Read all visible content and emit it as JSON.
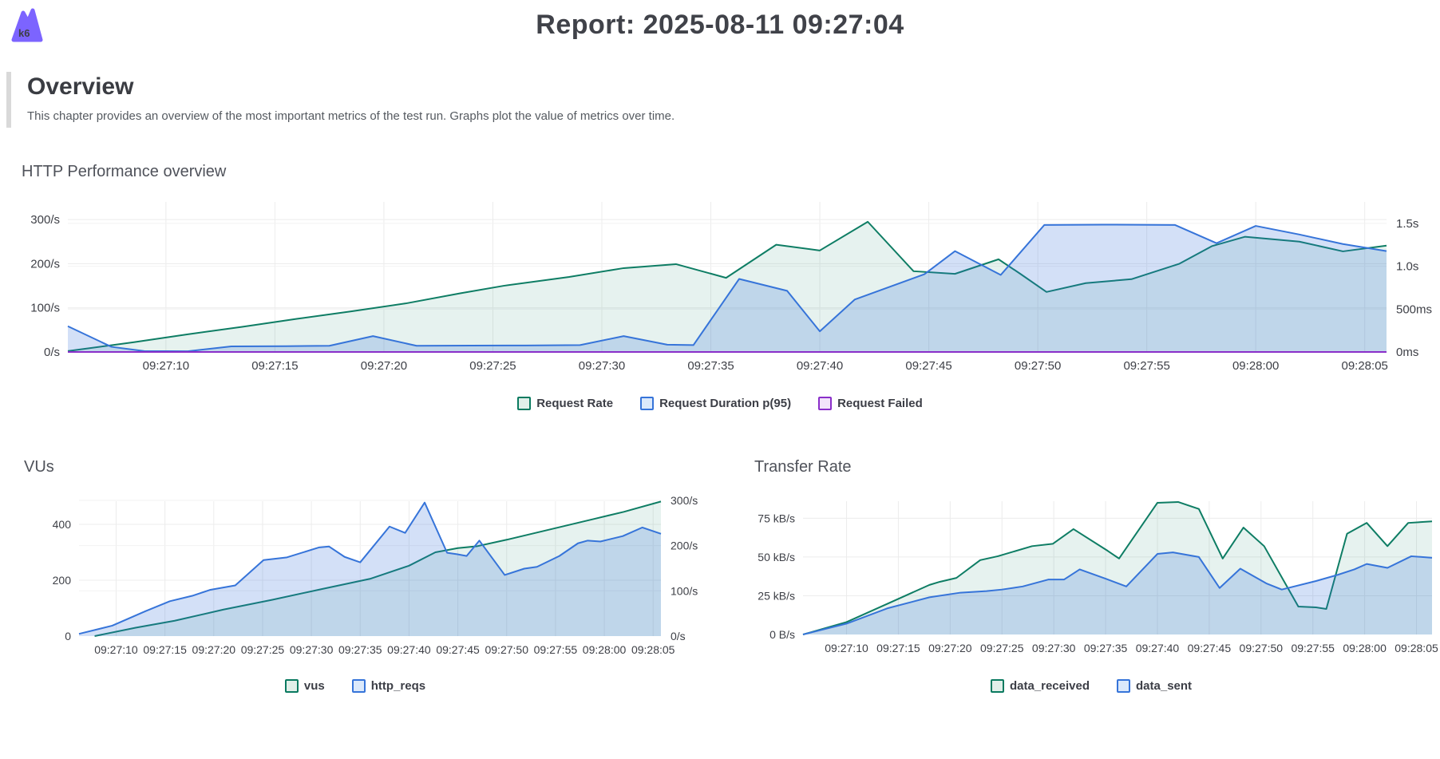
{
  "header": {
    "logo_text": "k6",
    "title": "Report: 2025-08-11 09:27:04"
  },
  "overview": {
    "heading": "Overview",
    "description": "This chapter provides an overview of the most important metrics of the test run. Graphs plot the value of metrics over time."
  },
  "colors": {
    "brand_purple": "#7c64ff",
    "series_green": "#0e7d64",
    "series_blue": "#3674d9",
    "series_purple": "#8a2fc9",
    "grid": "#ececec",
    "text": "#3d3f46"
  },
  "chart_data": [
    {
      "type": "area",
      "title": "HTTP Performance overview",
      "t_range": [
        5.5,
        66
      ],
      "x_ticks": [
        {
          "t": 10,
          "label": "09:27:10"
        },
        {
          "t": 15,
          "label": "09:27:15"
        },
        {
          "t": 20,
          "label": "09:27:20"
        },
        {
          "t": 25,
          "label": "09:27:25"
        },
        {
          "t": 30,
          "label": "09:27:30"
        },
        {
          "t": 35,
          "label": "09:27:35"
        },
        {
          "t": 40,
          "label": "09:27:40"
        },
        {
          "t": 45,
          "label": "09:27:45"
        },
        {
          "t": 50,
          "label": "09:27:50"
        },
        {
          "t": 55,
          "label": "09:27:55"
        },
        {
          "t": 60,
          "label": "09:28:00"
        },
        {
          "t": 65,
          "label": "09:28:05"
        }
      ],
      "axes": {
        "left": {
          "max": 340,
          "ticks": [
            {
              "v": 0,
              "label": "0/s"
            },
            {
              "v": 100,
              "label": "100/s"
            },
            {
              "v": 200,
              "label": "200/s"
            },
            {
              "v": 300,
              "label": "300/s"
            }
          ]
        },
        "right": {
          "max": 1750,
          "ticks": [
            {
              "v": 0,
              "label": "0ms"
            },
            {
              "v": 500,
              "label": "500ms"
            },
            {
              "v": 1000,
              "label": "1.0s"
            },
            {
              "v": 1500,
              "label": "1.5s"
            }
          ]
        }
      },
      "series": [
        {
          "name": "Request Rate",
          "axis": "left",
          "color": "#0e7d64",
          "fill_opacity": 0.1,
          "points": [
            [
              5.5,
              2
            ],
            [
              8.5,
              22
            ],
            [
              11,
              40
            ],
            [
              13.5,
              57
            ],
            [
              16,
              75
            ],
            [
              18.5,
              92
            ],
            [
              21,
              110
            ],
            [
              23.5,
              133
            ],
            [
              25.5,
              150
            ],
            [
              28.5,
              170
            ],
            [
              31,
              190
            ],
            [
              33.4,
              199
            ],
            [
              35.7,
              168
            ],
            [
              38,
              243
            ],
            [
              40,
              230
            ],
            [
              42.2,
              295
            ],
            [
              44.3,
              183
            ],
            [
              46.2,
              177
            ],
            [
              48.2,
              210
            ],
            [
              49.2,
              177
            ],
            [
              50.4,
              136
            ],
            [
              52.2,
              156
            ],
            [
              54.3,
              165
            ],
            [
              56.5,
              200
            ],
            [
              58,
              240
            ],
            [
              59.5,
              261
            ],
            [
              62,
              250
            ],
            [
              64,
              228
            ],
            [
              66,
              241
            ]
          ]
        },
        {
          "name": "Request Duration p(95)",
          "axis": "right",
          "color": "#3674d9",
          "fill_opacity": 0.22,
          "points": [
            [
              5.5,
              300
            ],
            [
              7.5,
              60
            ],
            [
              9,
              10
            ],
            [
              11,
              8
            ],
            [
              13,
              65
            ],
            [
              15.5,
              68
            ],
            [
              17.5,
              72
            ],
            [
              19.5,
              185
            ],
            [
              21.5,
              72
            ],
            [
              24,
              75
            ],
            [
              26.5,
              76
            ],
            [
              29,
              80
            ],
            [
              31,
              185
            ],
            [
              33,
              85
            ],
            [
              34.2,
              80
            ],
            [
              36.3,
              852
            ],
            [
              38.5,
              713
            ],
            [
              40,
              241
            ],
            [
              41.6,
              611
            ],
            [
              44.8,
              907
            ],
            [
              46.2,
              1176
            ],
            [
              48.3,
              898
            ],
            [
              50.3,
              1481
            ],
            [
              53,
              1485
            ],
            [
              56.3,
              1481
            ],
            [
              58.2,
              1269
            ],
            [
              60,
              1470
            ],
            [
              62,
              1370
            ],
            [
              64,
              1259
            ],
            [
              66,
              1176
            ]
          ]
        },
        {
          "name": "Request Failed",
          "axis": "left",
          "color": "#8a2fc9",
          "fill_opacity": 0,
          "points": [
            [
              5.5,
              0
            ],
            [
              66,
              0
            ]
          ]
        }
      ],
      "legend": [
        {
          "label": "Request Rate",
          "color": "#0a7a60",
          "fill": "#e1efe9"
        },
        {
          "label": "Request Duration p(95)",
          "color": "#3674d9",
          "fill": "#dbe9fb"
        },
        {
          "label": "Request Failed",
          "color": "#8a2fc9",
          "fill": "#f2e4fa"
        }
      ]
    },
    {
      "type": "area",
      "title": "VUs",
      "t_range": [
        6.2,
        65.8
      ],
      "x_ticks": [
        {
          "t": 10,
          "label": "09:27:10"
        },
        {
          "t": 15,
          "label": "09:27:15"
        },
        {
          "t": 20,
          "label": "09:27:20"
        },
        {
          "t": 25,
          "label": "09:27:25"
        },
        {
          "t": 30,
          "label": "09:27:30"
        },
        {
          "t": 35,
          "label": "09:27:35"
        },
        {
          "t": 40,
          "label": "09:27:40"
        },
        {
          "t": 45,
          "label": "09:27:45"
        },
        {
          "t": 50,
          "label": "09:27:50"
        },
        {
          "t": 55,
          "label": "09:27:55"
        },
        {
          "t": 60,
          "label": "09:28:00"
        },
        {
          "t": 65,
          "label": "09:28:05"
        }
      ],
      "axes": {
        "left": {
          "max": 483,
          "ticks": [
            {
              "v": 0,
              "label": "0"
            },
            {
              "v": 200,
              "label": "200"
            },
            {
              "v": 400,
              "label": "400"
            }
          ]
        },
        "right": {
          "max": 298,
          "ticks": [
            {
              "v": 0,
              "label": "0/s"
            },
            {
              "v": 100,
              "label": "100/s"
            },
            {
              "v": 200,
              "label": "200/s"
            },
            {
              "v": 300,
              "label": "300/s"
            }
          ]
        }
      },
      "series": [
        {
          "name": "vus",
          "axis": "left",
          "color": "#0e7d64",
          "fill_opacity": 0.1,
          "points": [
            [
              7.8,
              0
            ],
            [
              12,
              30
            ],
            [
              16,
              55
            ],
            [
              21,
              95
            ],
            [
              26,
              130
            ],
            [
              31,
              168
            ],
            [
              36,
              205
            ],
            [
              40,
              252
            ],
            [
              42.7,
              300
            ],
            [
              45,
              315
            ],
            [
              47,
              322
            ],
            [
              50,
              345
            ],
            [
              53,
              370
            ],
            [
              56,
              395
            ],
            [
              59,
              420
            ],
            [
              62,
              445
            ],
            [
              65.8,
              482
            ]
          ]
        },
        {
          "name": "http_reqs",
          "axis": "right",
          "color": "#3674d9",
          "fill_opacity": 0.22,
          "points": [
            [
              6.2,
              5
            ],
            [
              9.6,
              23
            ],
            [
              13,
              55
            ],
            [
              15.5,
              77
            ],
            [
              17.8,
              89
            ],
            [
              19.6,
              102
            ],
            [
              22.2,
              112
            ],
            [
              25.1,
              168
            ],
            [
              27.5,
              174
            ],
            [
              30.8,
              196
            ],
            [
              31.8,
              198
            ],
            [
              33.4,
              175
            ],
            [
              35,
              163
            ],
            [
              38,
              242
            ],
            [
              39.6,
              228
            ],
            [
              41.6,
              295
            ],
            [
              43.9,
              184
            ],
            [
              44.9,
              181
            ],
            [
              45.9,
              177
            ],
            [
              47.2,
              211
            ],
            [
              49.8,
              135
            ],
            [
              51.8,
              149
            ],
            [
              53.1,
              153
            ],
            [
              55.4,
              177
            ],
            [
              57.3,
              205
            ],
            [
              58.3,
              211
            ],
            [
              59.6,
              209
            ],
            [
              61.9,
              221
            ],
            [
              63.9,
              240
            ],
            [
              65.8,
              226
            ]
          ]
        }
      ],
      "legend": [
        {
          "label": "vus",
          "color": "#0a7a60",
          "fill": "#e1efe9"
        },
        {
          "label": "http_reqs",
          "color": "#3674d9",
          "fill": "#dbe9fb"
        }
      ]
    },
    {
      "type": "area",
      "title": "Transfer Rate",
      "t_range": [
        5.8,
        66.5
      ],
      "x_ticks": [
        {
          "t": 10,
          "label": "09:27:10"
        },
        {
          "t": 15,
          "label": "09:27:15"
        },
        {
          "t": 20,
          "label": "09:27:20"
        },
        {
          "t": 25,
          "label": "09:27:25"
        },
        {
          "t": 30,
          "label": "09:27:30"
        },
        {
          "t": 35,
          "label": "09:27:35"
        },
        {
          "t": 40,
          "label": "09:27:40"
        },
        {
          "t": 45,
          "label": "09:27:45"
        },
        {
          "t": 50,
          "label": "09:27:50"
        },
        {
          "t": 55,
          "label": "09:27:55"
        },
        {
          "t": 60,
          "label": "09:28:00"
        },
        {
          "t": 65,
          "label": "09:28:05"
        }
      ],
      "axes": {
        "left": {
          "max": 86,
          "ticks": [
            {
              "v": 0,
              "label": "0 B/s"
            },
            {
              "v": 25,
              "label": "25 kB/s"
            },
            {
              "v": 50,
              "label": "50 kB/s"
            },
            {
              "v": 75,
              "label": "75 kB/s"
            }
          ]
        }
      },
      "series": [
        {
          "name": "data_received",
          "axis": "left",
          "color": "#0e7d64",
          "fill_opacity": 0.1,
          "points": [
            [
              5.8,
              0
            ],
            [
              10,
              8
            ],
            [
              14,
              20
            ],
            [
              18,
              32
            ],
            [
              19,
              34
            ],
            [
              20.6,
              36.5
            ],
            [
              22.9,
              48
            ],
            [
              24.6,
              50.5
            ],
            [
              27.9,
              57
            ],
            [
              29.9,
              58.5
            ],
            [
              31.9,
              68
            ],
            [
              35.2,
              54
            ],
            [
              36.3,
              49
            ],
            [
              40,
              85
            ],
            [
              42,
              85.5
            ],
            [
              44,
              81
            ],
            [
              46.3,
              49
            ],
            [
              48.3,
              69
            ],
            [
              50.3,
              57
            ],
            [
              53.6,
              18
            ],
            [
              55.3,
              17.5
            ],
            [
              56.3,
              16.5
            ],
            [
              58.3,
              65
            ],
            [
              60.2,
              72
            ],
            [
              62.2,
              57
            ],
            [
              64.2,
              72
            ],
            [
              66.5,
              73
            ]
          ]
        },
        {
          "name": "data_sent",
          "axis": "left",
          "color": "#3674d9",
          "fill_opacity": 0.22,
          "points": [
            [
              5.8,
              0
            ],
            [
              10,
              7
            ],
            [
              14,
              17
            ],
            [
              18,
              24
            ],
            [
              21,
              27
            ],
            [
              23.5,
              28
            ],
            [
              25,
              29
            ],
            [
              27,
              31
            ],
            [
              29.5,
              35.5
            ],
            [
              31,
              35.5
            ],
            [
              32.5,
              42
            ],
            [
              35,
              36
            ],
            [
              37,
              31
            ],
            [
              40,
              52
            ],
            [
              41.5,
              53
            ],
            [
              44,
              50
            ],
            [
              46,
              30
            ],
            [
              48,
              42.5
            ],
            [
              50.5,
              33
            ],
            [
              52,
              29
            ],
            [
              55.3,
              34.5
            ],
            [
              57.4,
              38.5
            ],
            [
              59,
              42
            ],
            [
              60.2,
              45.5
            ],
            [
              62.2,
              43
            ],
            [
              64.5,
              50.5
            ],
            [
              66.5,
              49.5
            ]
          ]
        }
      ],
      "legend": [
        {
          "label": "data_received",
          "color": "#0a7a60",
          "fill": "#e1efe9"
        },
        {
          "label": "data_sent",
          "color": "#3674d9",
          "fill": "#dbe9fb"
        }
      ]
    }
  ]
}
